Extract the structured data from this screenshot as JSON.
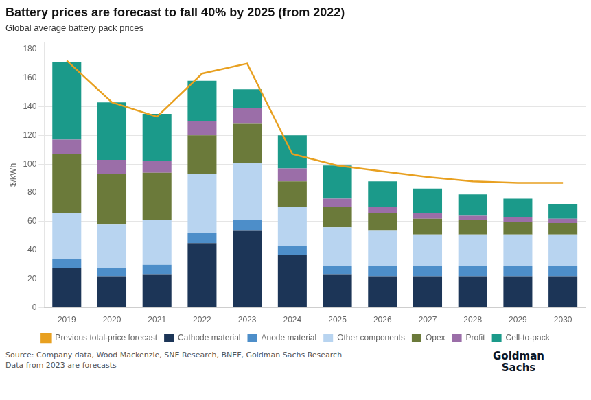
{
  "chart_data": {
    "type": "bar",
    "stacked": true,
    "title": "Battery prices are forecast to fall 40% by 2025 (from 2022)",
    "subtitle": "Global average battery pack prices",
    "ylabel": "$/kWh",
    "categories": [
      2019,
      2020,
      2021,
      2022,
      2023,
      2024,
      2025,
      2026,
      2027,
      2028,
      2029,
      2030
    ],
    "series": [
      {
        "name": "Previous total-price forecast",
        "type": "line",
        "color": "#e8a020",
        "values": [
          172,
          143,
          133,
          163,
          170,
          107,
          99,
          95,
          91,
          88,
          87,
          87
        ]
      },
      {
        "name": "Cathode material",
        "type": "bar",
        "color": "#1c3557",
        "values": [
          28,
          22,
          23,
          45,
          54,
          37,
          23,
          22,
          22,
          22,
          22,
          22
        ]
      },
      {
        "name": "Anode material",
        "type": "bar",
        "color": "#4d8ec9",
        "values": [
          6,
          6,
          7,
          7,
          7,
          6,
          6,
          7,
          7,
          7,
          7,
          7
        ]
      },
      {
        "name": "Other components",
        "type": "bar",
        "color": "#b8d4f0",
        "values": [
          32,
          30,
          31,
          41,
          40,
          27,
          27,
          25,
          22,
          22,
          22,
          22
        ]
      },
      {
        "name": "Opex",
        "type": "bar",
        "color": "#6b7a3a",
        "values": [
          41,
          35,
          33,
          27,
          27,
          18,
          14,
          12,
          11,
          10,
          9,
          8
        ]
      },
      {
        "name": "Profit",
        "type": "bar",
        "color": "#9b6ea8",
        "values": [
          10,
          10,
          8,
          10,
          11,
          9,
          6,
          4,
          4,
          3,
          3,
          3
        ]
      },
      {
        "name": "Cell-to-pack",
        "type": "bar",
        "color": "#1b9a8a",
        "values": [
          54,
          40,
          33,
          28,
          13,
          23,
          23,
          18,
          17,
          15,
          13,
          10
        ]
      }
    ],
    "ylim": [
      0,
      185
    ],
    "yticks": [
      0,
      20,
      40,
      60,
      80,
      100,
      120,
      140,
      160,
      180
    ],
    "grid": true,
    "legend": "bottom",
    "annotations": [
      "Source: Company data, Wood Mackenzie, SNE Research, BNEF, Goldman Sachs Research\nData from 2023 are forecasts",
      "Goldman\nSachs"
    ]
  }
}
